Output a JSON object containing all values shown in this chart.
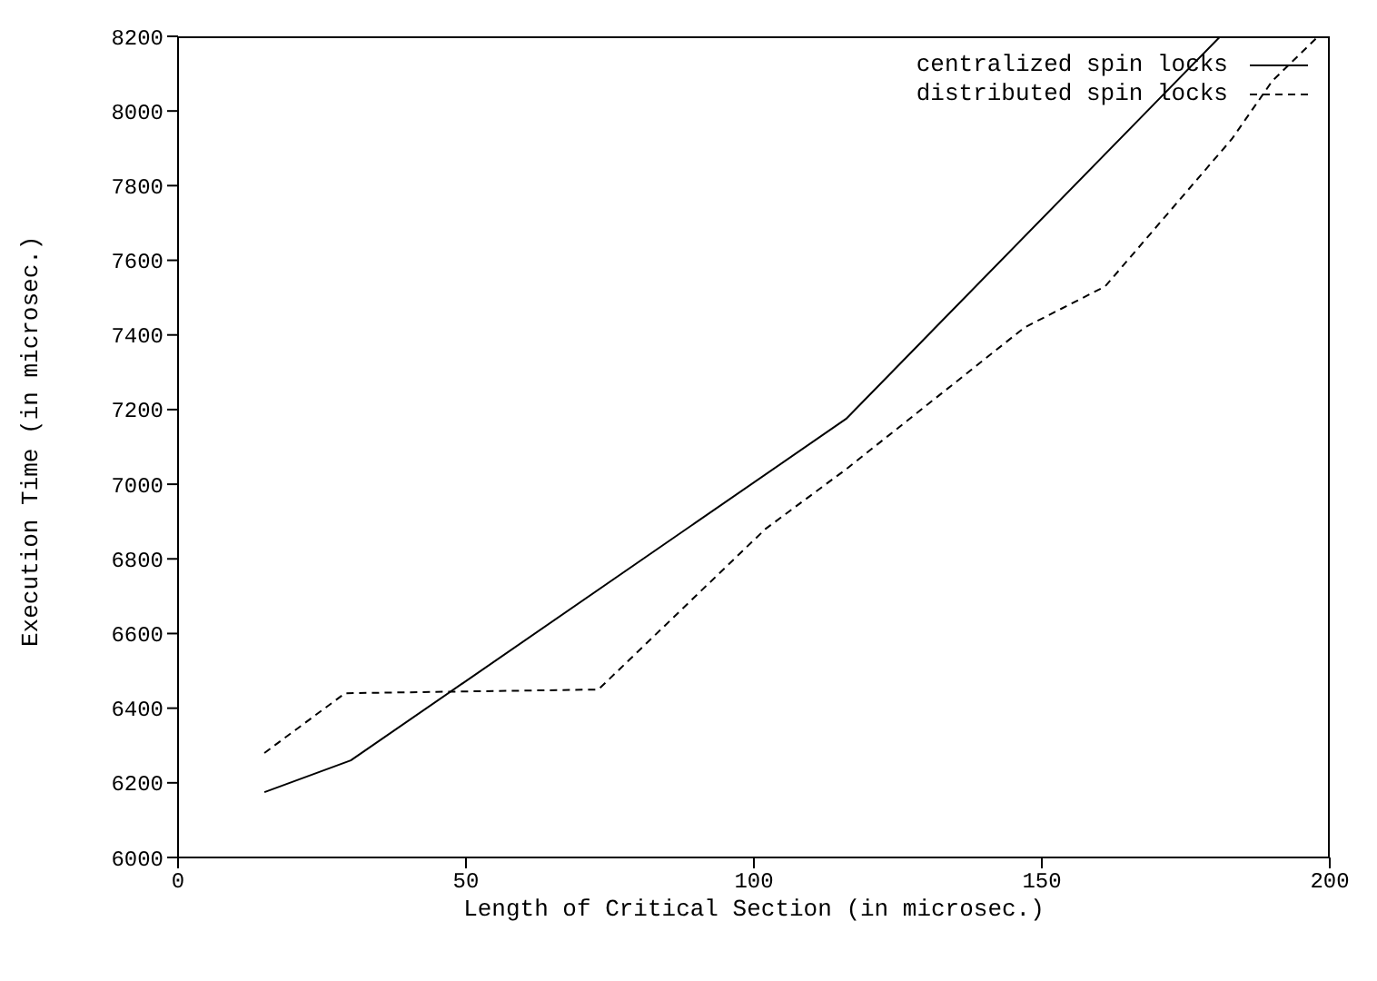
{
  "chart_data": {
    "type": "line",
    "xlabel": "Length of Critical Section (in microsec.)",
    "ylabel": "Execution Time (in microsec.)",
    "xlim": [
      0,
      200
    ],
    "xticks": [
      0,
      50,
      100,
      150,
      200
    ],
    "ylim": [
      6000,
      8200
    ],
    "yticks": [
      6000,
      6200,
      6400,
      6600,
      6800,
      7000,
      7200,
      7400,
      7600,
      7800,
      8000,
      8200
    ],
    "grid": false,
    "legend": "top right",
    "marker": "none",
    "series": [
      {
        "name": "centralized spin locks",
        "color": "#000000",
        "line_style": "solid",
        "x": [
          15,
          30,
          116,
          181
        ],
        "values": [
          6175,
          6260,
          7175,
          8200
        ]
      },
      {
        "name": "distributed spin locks",
        "color": "#000000",
        "line_style": "dashed",
        "x": [
          15,
          29,
          73,
          102,
          116,
          147,
          161,
          183,
          190,
          198
        ],
        "values": [
          6280,
          6440,
          6450,
          6880,
          7040,
          7420,
          7530,
          7925,
          8080,
          8200
        ]
      }
    ]
  }
}
